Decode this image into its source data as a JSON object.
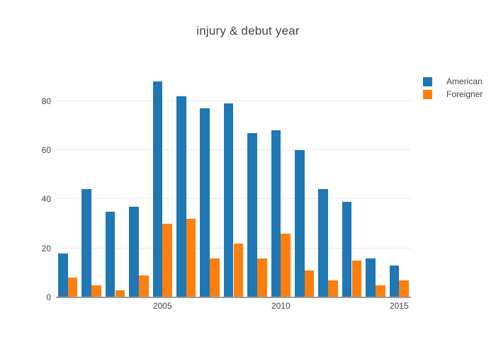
{
  "chart_data": {
    "type": "bar",
    "title": "injury & debut year",
    "categories": [
      2001,
      2002,
      2003,
      2004,
      2005,
      2006,
      2007,
      2008,
      2009,
      2010,
      2011,
      2012,
      2013,
      2014,
      2015
    ],
    "series": [
      {
        "name": "American",
        "color": "#1f77b4",
        "values": [
          18,
          44,
          35,
          37,
          88,
          82,
          77,
          79,
          67,
          68,
          60,
          44,
          39,
          16,
          13
        ]
      },
      {
        "name": "Foreigner",
        "color": "#ff7f0e",
        "values": [
          8,
          5,
          3,
          9,
          30,
          32,
          16,
          22,
          16,
          26,
          11,
          7,
          15,
          5,
          7
        ]
      }
    ],
    "xticks": [
      2005,
      2010,
      2015
    ],
    "yticks": [
      0,
      20,
      40,
      60,
      80
    ],
    "ylim": [
      0,
      95.2
    ],
    "grid": true,
    "legend_position": "top-right",
    "text_color": "#444444",
    "gridline_color": "#e9e9e9",
    "axis_line_color": "#9b9b9b",
    "background_color": "#ffffff"
  }
}
